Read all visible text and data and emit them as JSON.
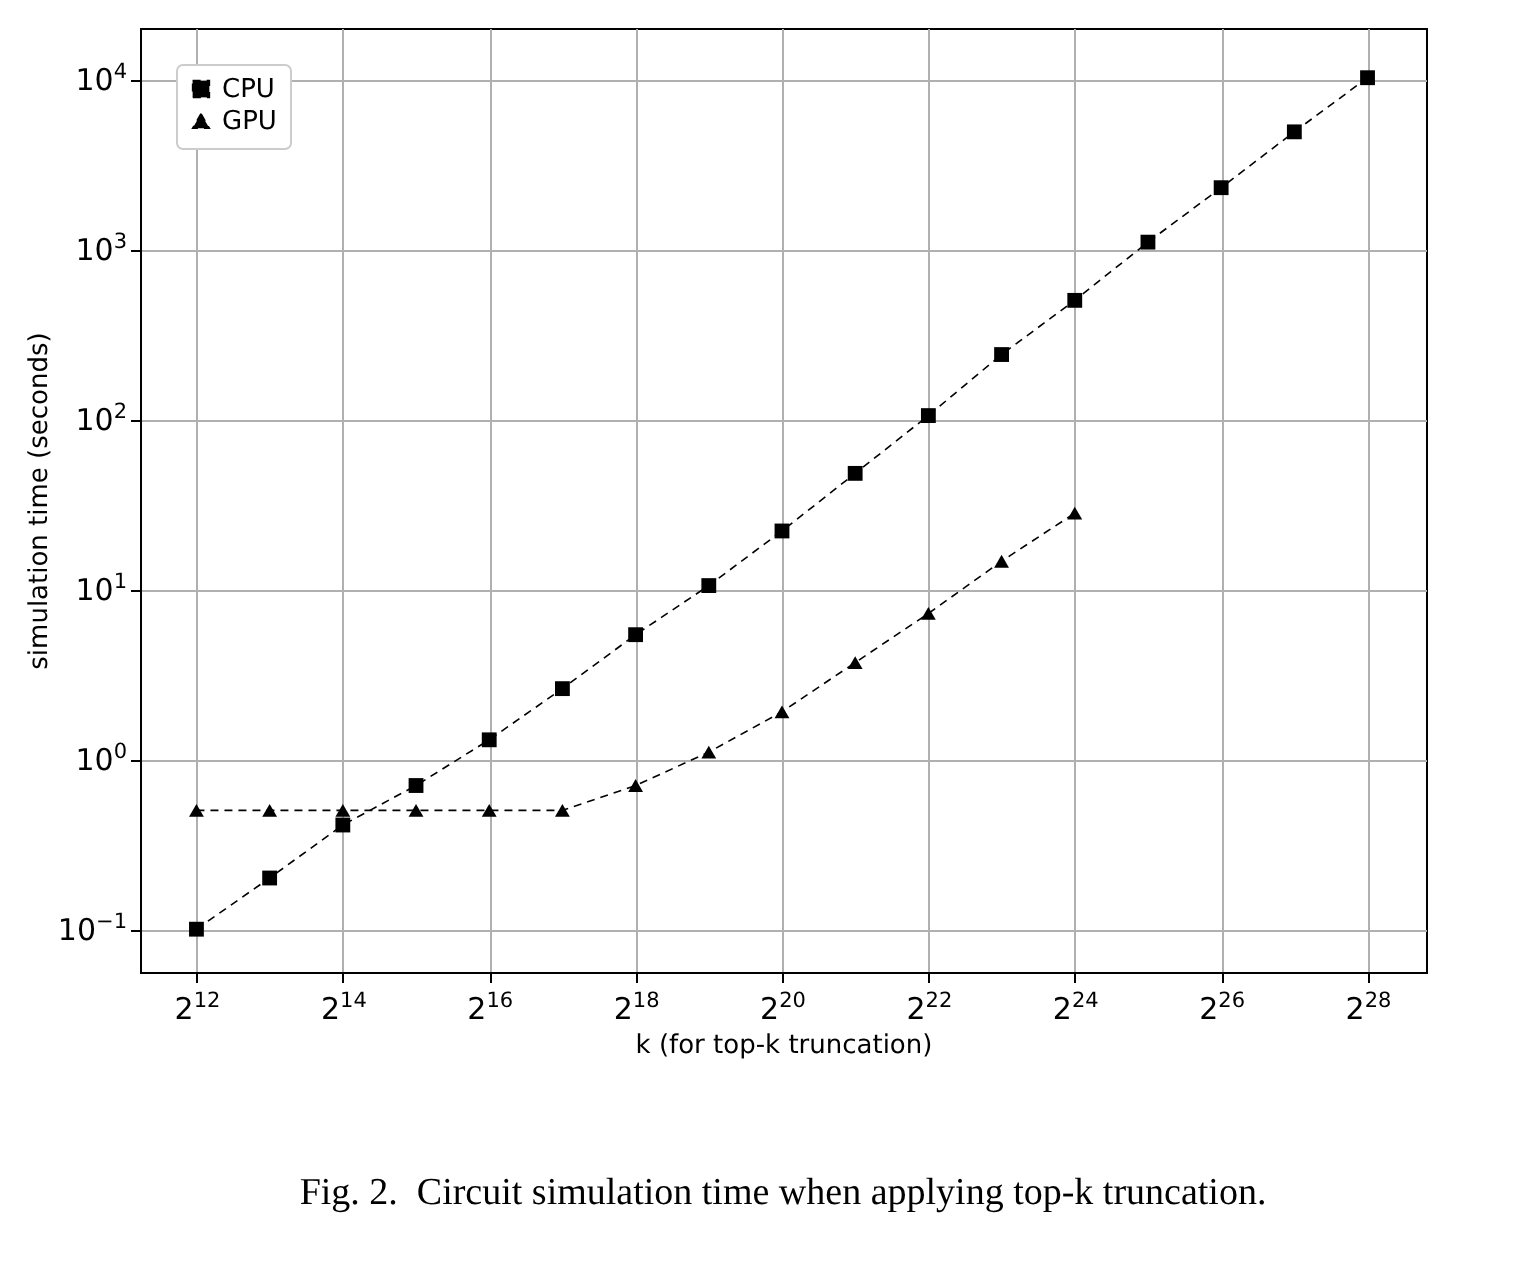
{
  "chart_data": {
    "type": "line",
    "xlabel": "k (for top-k truncation)",
    "ylabel": "simulation time (seconds)",
    "annotations": [
      "Fig. 2.  Circuit simulation time when applying top-k truncation."
    ],
    "log": "xy",
    "grid": true,
    "legend": "top left",
    "line_style": "dashed",
    "xlim": [
      2400,
      467000000
    ],
    "ylim": [
      0.056,
      20000
    ],
    "xticks": [
      {
        "value": 4096,
        "label": "2$^{12}$"
      },
      {
        "value": 16384,
        "label": "2$^{14}$"
      },
      {
        "value": 65536,
        "label": "2$^{16}$"
      },
      {
        "value": 262144,
        "label": "2$^{18}$"
      },
      {
        "value": 1048576,
        "label": "2$^{20}$"
      },
      {
        "value": 4194304,
        "label": "2$^{22}$"
      },
      {
        "value": 16777216,
        "label": "2$^{24}$"
      },
      {
        "value": 67108864,
        "label": "2$^{26}$"
      },
      {
        "value": 268435456,
        "label": "2$^{28}$"
      }
    ],
    "yticks": [
      {
        "value": 0.1,
        "label": "10$^{−1}$"
      },
      {
        "value": 1,
        "label": "10$^{0}$"
      },
      {
        "value": 10,
        "label": "10$^{1}$"
      },
      {
        "value": 100,
        "label": "10$^{2}$"
      },
      {
        "value": 1000,
        "label": "10$^{3}$"
      },
      {
        "value": 10000,
        "label": "10$^{4}$"
      }
    ],
    "series": [
      {
        "name": "CPU",
        "color": "#000000",
        "marker": "square",
        "x": [
          4096,
          8192,
          16384,
          32768,
          65536,
          131072,
          262144,
          524288,
          1048576,
          2097152,
          4194304,
          8388608,
          16777216,
          33554432,
          67108864,
          134217728,
          268435456
        ],
        "values": [
          0.1,
          0.2,
          0.41,
          0.7,
          1.3,
          2.6,
          5.4,
          10.5,
          22,
          48,
          105,
          240,
          500,
          1100,
          2300,
          4900,
          10200
        ]
      },
      {
        "name": "GPU",
        "color": "#000000",
        "marker": "triangle",
        "x": [
          4096,
          8192,
          16384,
          32768,
          65536,
          131072,
          262144,
          524288,
          1048576,
          2097152,
          4194304,
          8388608,
          16777216
        ],
        "values": [
          0.5,
          0.5,
          0.5,
          0.5,
          0.5,
          0.5,
          0.7,
          1.1,
          1.9,
          3.7,
          7.2,
          14.6,
          28
        ]
      }
    ]
  }
}
